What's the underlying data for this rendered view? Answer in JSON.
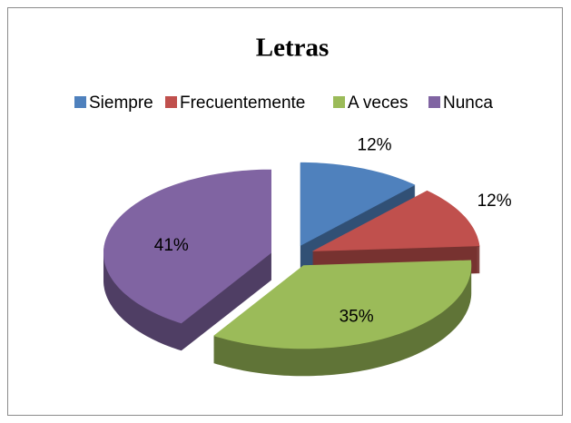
{
  "chart_data": {
    "type": "pie",
    "title": "Letras",
    "categories": [
      "Siempre",
      "Frecuentemente",
      "A veces",
      "Nunca"
    ],
    "values": [
      12,
      12,
      35,
      41
    ],
    "value_labels": [
      "12%",
      "12%",
      "35%",
      "41%"
    ],
    "colors": [
      "#4f81bd",
      "#c0504d",
      "#9bbb59",
      "#8064a2"
    ],
    "legend": "top"
  }
}
